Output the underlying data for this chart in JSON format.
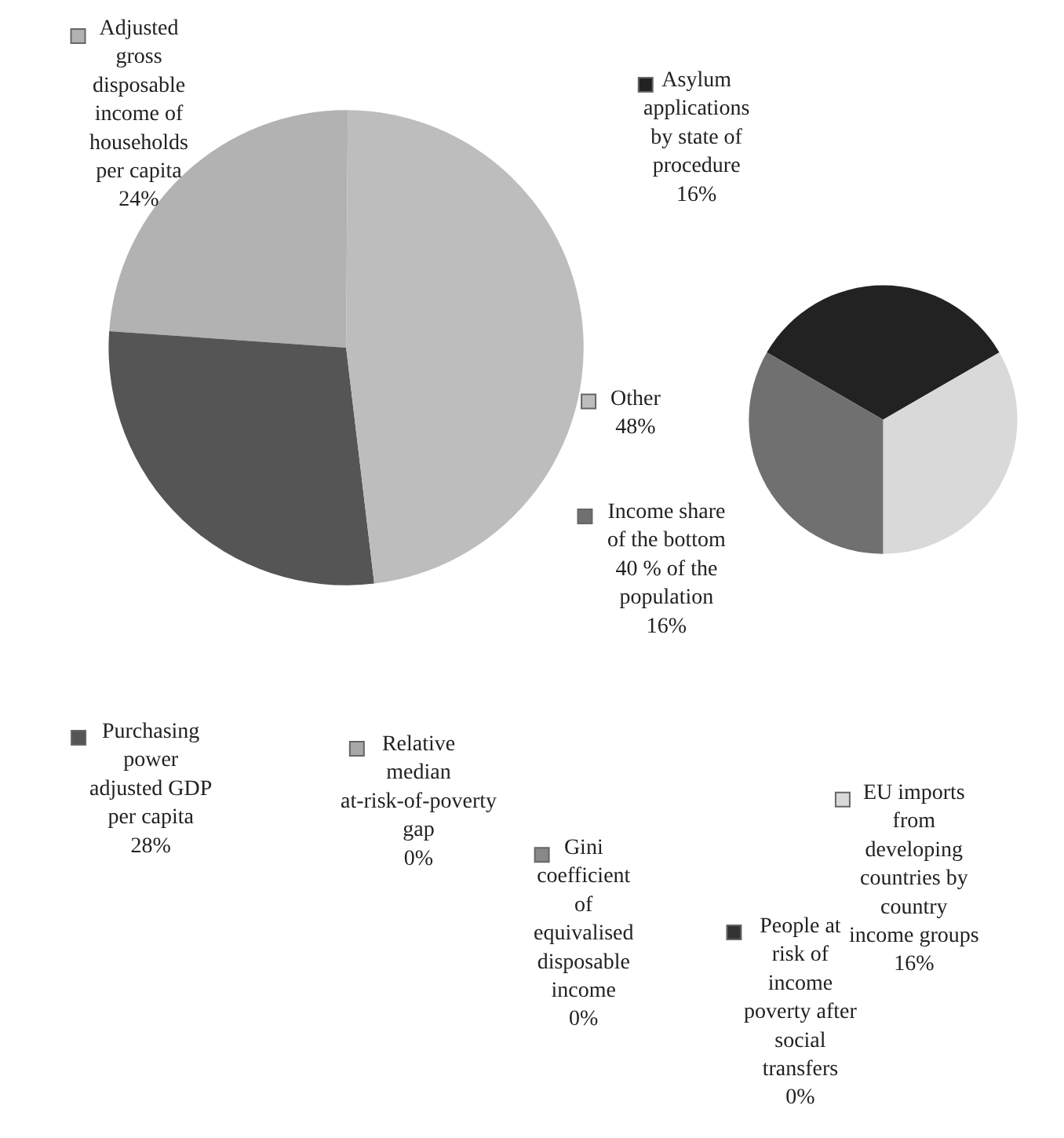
{
  "chart_data": [
    {
      "type": "pie",
      "categories": [
        "Adjusted gross disposable income of households per capita",
        "Purchasing power adjusted GDP per capita",
        "Other"
      ],
      "values": [
        24,
        28,
        48
      ],
      "value_labels": [
        "24%",
        "28%",
        "48%"
      ],
      "colors": [
        "#b2b2b2",
        "#555555",
        "#bdbdbd"
      ],
      "legend": "left"
    },
    {
      "type": "pie",
      "categories": [
        "Asylum applications by state of procedure",
        "EU imports from developing countries by country income groups",
        "Income share of the bottom 40 % of the population",
        "Relative median at-risk-of-poverty gap",
        "Gini coefficient of equivalised disposable income",
        "People at risk of income poverty after social transfers"
      ],
      "values": [
        16,
        16,
        16,
        0,
        0,
        0
      ],
      "value_labels": [
        "16%",
        "16%",
        "16%",
        "0%",
        "0%",
        "0%"
      ],
      "colors": [
        "#222222",
        "#d9d9d9",
        "#707070",
        "#a8a8a8",
        "#888888",
        "#333333"
      ],
      "legend": "bottom"
    }
  ]
}
